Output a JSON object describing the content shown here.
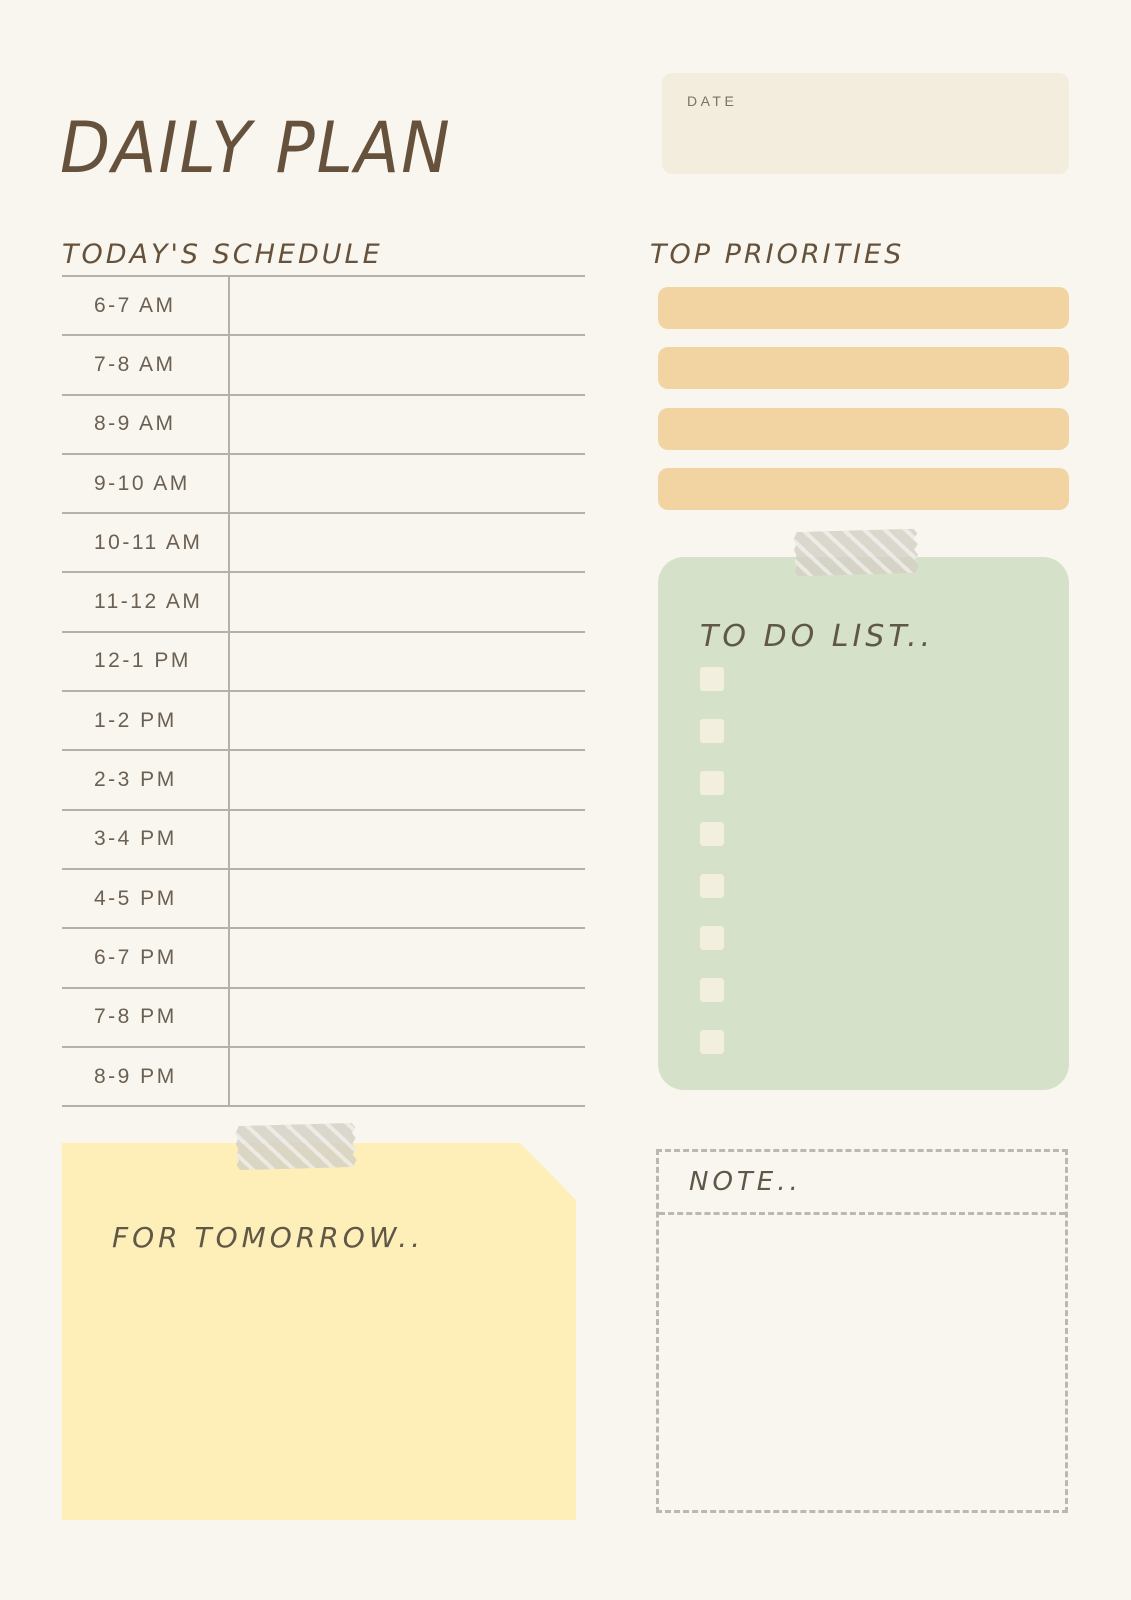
{
  "page": {
    "title": "DAILY PLAN",
    "background_color": "#f8f6ee",
    "text_brown": "#66523c"
  },
  "date_box": {
    "label": "DATE",
    "fill_color": "#f3eddd",
    "value": ""
  },
  "schedule": {
    "heading": "TODAY'S SCHEDULE",
    "line_color": "#b5b1a8",
    "slots": [
      "6-7 AM",
      "7-8 AM",
      "8-9 AM",
      "9-10 AM",
      "10-11 AM",
      "11-12 AM",
      "12-1 PM",
      "1-2 PM",
      "2-3 PM",
      "3-4 PM",
      "4-5 PM",
      "6-7 PM",
      "7-8 PM",
      "8-9 PM"
    ],
    "entries": [
      "",
      "",
      "",
      "",
      "",
      "",
      "",
      "",
      "",
      "",
      "",
      "",
      "",
      ""
    ]
  },
  "priorities": {
    "heading": "TOP PRIORITIES",
    "bar_count": 4,
    "bar_color": "#f2d4a3",
    "values": [
      "",
      "",
      "",
      ""
    ]
  },
  "todo": {
    "heading": "TO DO LIST..",
    "card_color": "#d5e1c8",
    "checkbox_count": 8,
    "checkbox_color": "#f3efdf",
    "items": [
      "",
      "",
      "",
      "",
      "",
      "",
      "",
      ""
    ]
  },
  "tomorrow": {
    "heading": "FOR TOMORROW..",
    "note_color": "#feeeb7",
    "value": ""
  },
  "note": {
    "heading": "NOTE..",
    "border_color": "#bcb8af",
    "value": ""
  },
  "decorations": {
    "tape_color": "rgba(211,207,198,0.82)",
    "tape_count": 2
  }
}
